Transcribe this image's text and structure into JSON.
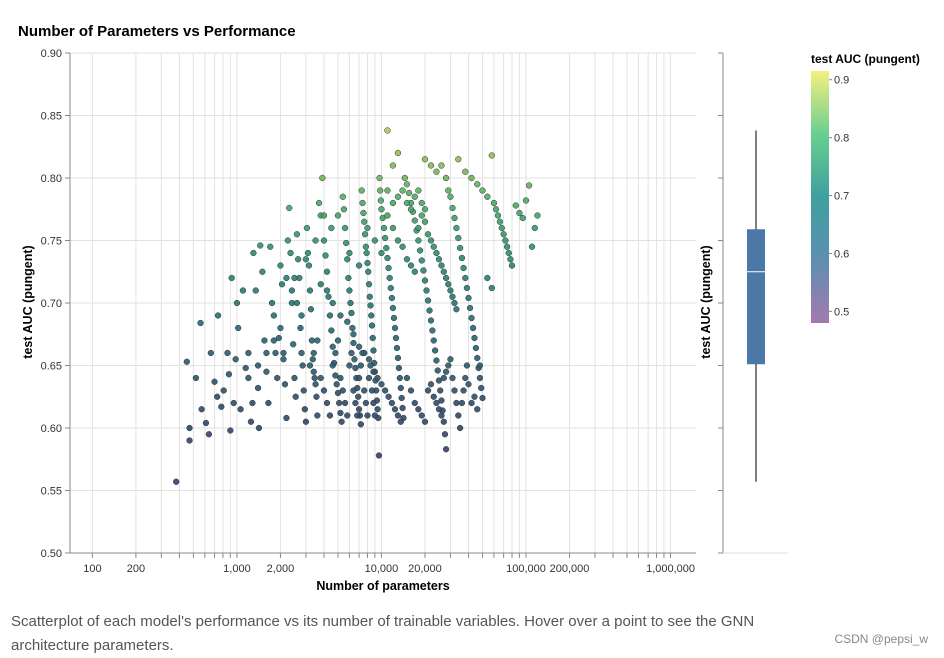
{
  "chart_data": {
    "type": "scatter",
    "title": "Number of Parameters vs Performance",
    "xlabel": "Number of parameters",
    "ylabel": "test AUC (pungent)",
    "xscale": "log",
    "xlim": [
      70,
      1500000
    ],
    "ylim": [
      0.5,
      0.9
    ],
    "x_tick_labels": [
      {
        "value": 100,
        "label": "100"
      },
      {
        "value": 200,
        "label": "200"
      },
      {
        "value": 1000,
        "label": "1,000"
      },
      {
        "value": 2000,
        "label": "2,000"
      },
      {
        "value": 10000,
        "label": "10,000"
      },
      {
        "value": 20000,
        "label": "20,000"
      },
      {
        "value": 100000,
        "label": "100,000"
      },
      {
        "value": 200000,
        "label": "200,000"
      },
      {
        "value": 1000000,
        "label": "1,000,000"
      }
    ],
    "y_tick_labels": [
      {
        "value": 0.5,
        "label": "0.50"
      },
      {
        "value": 0.55,
        "label": "0.55"
      },
      {
        "value": 0.6,
        "label": "0.60"
      },
      {
        "value": 0.65,
        "label": "0.65"
      },
      {
        "value": 0.7,
        "label": "0.70"
      },
      {
        "value": 0.75,
        "label": "0.75"
      },
      {
        "value": 0.8,
        "label": "0.80"
      },
      {
        "value": 0.85,
        "label": "0.85"
      },
      {
        "value": 0.9,
        "label": "0.90"
      }
    ],
    "color_encoding": "test AUC (pungent)",
    "grid": true,
    "points": [
      [
        380,
        0.557
      ],
      [
        470,
        0.59
      ],
      [
        470,
        0.6
      ],
      [
        450,
        0.653
      ],
      [
        520,
        0.64
      ],
      [
        570,
        0.615
      ],
      [
        560,
        0.684
      ],
      [
        610,
        0.604
      ],
      [
        640,
        0.595
      ],
      [
        660,
        0.66
      ],
      [
        700,
        0.637
      ],
      [
        730,
        0.625
      ],
      [
        740,
        0.69
      ],
      [
        780,
        0.617
      ],
      [
        810,
        0.63
      ],
      [
        860,
        0.66
      ],
      [
        880,
        0.643
      ],
      [
        900,
        0.598
      ],
      [
        920,
        0.72
      ],
      [
        950,
        0.62
      ],
      [
        980,
        0.655
      ],
      [
        1000,
        0.7
      ],
      [
        1020,
        0.68
      ],
      [
        1060,
        0.615
      ],
      [
        1100,
        0.71
      ],
      [
        1150,
        0.648
      ],
      [
        1200,
        0.66
      ],
      [
        1250,
        0.605
      ],
      [
        1280,
        0.62
      ],
      [
        1300,
        0.74
      ],
      [
        1350,
        0.71
      ],
      [
        1400,
        0.632
      ],
      [
        1420,
        0.6
      ],
      [
        1450,
        0.746
      ],
      [
        1500,
        0.725
      ],
      [
        1550,
        0.67
      ],
      [
        1600,
        0.645
      ],
      [
        1650,
        0.62
      ],
      [
        1700,
        0.745
      ],
      [
        1750,
        0.7
      ],
      [
        1800,
        0.69
      ],
      [
        1850,
        0.66
      ],
      [
        1900,
        0.64
      ],
      [
        1950,
        0.672
      ],
      [
        2000,
        0.73
      ],
      [
        2050,
        0.715
      ],
      [
        2100,
        0.655
      ],
      [
        2150,
        0.635
      ],
      [
        2200,
        0.608
      ],
      [
        2250,
        0.75
      ],
      [
        2300,
        0.776
      ],
      [
        2350,
        0.74
      ],
      [
        2400,
        0.7
      ],
      [
        2450,
        0.667
      ],
      [
        2500,
        0.64
      ],
      [
        2550,
        0.625
      ],
      [
        2600,
        0.755
      ],
      [
        2650,
        0.735
      ],
      [
        2700,
        0.72
      ],
      [
        2750,
        0.68
      ],
      [
        2800,
        0.66
      ],
      [
        2850,
        0.65
      ],
      [
        2900,
        0.63
      ],
      [
        2950,
        0.615
      ],
      [
        3000,
        0.605
      ],
      [
        3050,
        0.76
      ],
      [
        3100,
        0.74
      ],
      [
        3150,
        0.73
      ],
      [
        3200,
        0.71
      ],
      [
        3250,
        0.695
      ],
      [
        3300,
        0.67
      ],
      [
        3350,
        0.655
      ],
      [
        3400,
        0.645
      ],
      [
        3450,
        0.64
      ],
      [
        3500,
        0.635
      ],
      [
        3550,
        0.625
      ],
      [
        3600,
        0.61
      ],
      [
        3700,
        0.78
      ],
      [
        3800,
        0.77
      ],
      [
        3900,
        0.8
      ],
      [
        4000,
        0.75
      ],
      [
        4100,
        0.738
      ],
      [
        4200,
        0.725
      ],
      [
        4300,
        0.705
      ],
      [
        4400,
        0.69
      ],
      [
        4500,
        0.678
      ],
      [
        4600,
        0.665
      ],
      [
        4700,
        0.652
      ],
      [
        4800,
        0.642
      ],
      [
        4900,
        0.635
      ],
      [
        5000,
        0.628
      ],
      [
        5100,
        0.62
      ],
      [
        5200,
        0.612
      ],
      [
        5300,
        0.605
      ],
      [
        5400,
        0.785
      ],
      [
        5500,
        0.775
      ],
      [
        5600,
        0.76
      ],
      [
        5700,
        0.748
      ],
      [
        5800,
        0.735
      ],
      [
        5900,
        0.72
      ],
      [
        6000,
        0.71
      ],
      [
        6100,
        0.7
      ],
      [
        6200,
        0.692
      ],
      [
        6300,
        0.68
      ],
      [
        6400,
        0.668
      ],
      [
        6500,
        0.655
      ],
      [
        6600,
        0.648
      ],
      [
        6700,
        0.64
      ],
      [
        6800,
        0.632
      ],
      [
        6900,
        0.625
      ],
      [
        7000,
        0.615
      ],
      [
        7100,
        0.61
      ],
      [
        7200,
        0.603
      ],
      [
        7300,
        0.79
      ],
      [
        7400,
        0.78
      ],
      [
        7500,
        0.772
      ],
      [
        7600,
        0.765
      ],
      [
        7700,
        0.755
      ],
      [
        7800,
        0.745
      ],
      [
        7900,
        0.74
      ],
      [
        8000,
        0.732
      ],
      [
        8100,
        0.725
      ],
      [
        8200,
        0.715
      ],
      [
        8300,
        0.705
      ],
      [
        8400,
        0.698
      ],
      [
        8500,
        0.69
      ],
      [
        8600,
        0.682
      ],
      [
        8700,
        0.672
      ],
      [
        8800,
        0.662
      ],
      [
        8900,
        0.652
      ],
      [
        9000,
        0.645
      ],
      [
        9100,
        0.638
      ],
      [
        9200,
        0.63
      ],
      [
        9300,
        0.622
      ],
      [
        9400,
        0.615
      ],
      [
        9500,
        0.608
      ],
      [
        9600,
        0.578
      ],
      [
        9700,
        0.8
      ],
      [
        9800,
        0.79
      ],
      [
        9900,
        0.782
      ],
      [
        10000,
        0.775
      ],
      [
        10200,
        0.768
      ],
      [
        10400,
        0.76
      ],
      [
        10600,
        0.752
      ],
      [
        10800,
        0.744
      ],
      [
        11000,
        0.736
      ],
      [
        11200,
        0.728
      ],
      [
        11400,
        0.72
      ],
      [
        11600,
        0.712
      ],
      [
        11800,
        0.704
      ],
      [
        12000,
        0.696
      ],
      [
        12200,
        0.688
      ],
      [
        12400,
        0.68
      ],
      [
        12600,
        0.672
      ],
      [
        12800,
        0.664
      ],
      [
        13000,
        0.656
      ],
      [
        13200,
        0.648
      ],
      [
        13400,
        0.64
      ],
      [
        13600,
        0.632
      ],
      [
        13800,
        0.624
      ],
      [
        14000,
        0.616
      ],
      [
        14200,
        0.608
      ],
      [
        11000,
        0.838
      ],
      [
        13000,
        0.82
      ],
      [
        12000,
        0.81
      ],
      [
        14500,
        0.8
      ],
      [
        15000,
        0.795
      ],
      [
        15500,
        0.788
      ],
      [
        16000,
        0.78
      ],
      [
        16500,
        0.773
      ],
      [
        17000,
        0.766
      ],
      [
        17500,
        0.758
      ],
      [
        18000,
        0.75
      ],
      [
        18500,
        0.742
      ],
      [
        19000,
        0.734
      ],
      [
        19500,
        0.726
      ],
      [
        20000,
        0.718
      ],
      [
        20500,
        0.71
      ],
      [
        21000,
        0.702
      ],
      [
        21500,
        0.694
      ],
      [
        22000,
        0.686
      ],
      [
        22500,
        0.678
      ],
      [
        23000,
        0.67
      ],
      [
        23500,
        0.662
      ],
      [
        24000,
        0.654
      ],
      [
        24500,
        0.646
      ],
      [
        25000,
        0.638
      ],
      [
        25500,
        0.63
      ],
      [
        26000,
        0.622
      ],
      [
        26500,
        0.614
      ],
      [
        27000,
        0.605
      ],
      [
        27500,
        0.595
      ],
      [
        28000,
        0.583
      ],
      [
        20000,
        0.815
      ],
      [
        22000,
        0.81
      ],
      [
        24000,
        0.805
      ],
      [
        26000,
        0.81
      ],
      [
        28000,
        0.8
      ],
      [
        29000,
        0.79
      ],
      [
        30000,
        0.785
      ],
      [
        31000,
        0.776
      ],
      [
        32000,
        0.768
      ],
      [
        33000,
        0.76
      ],
      [
        34000,
        0.752
      ],
      [
        35000,
        0.744
      ],
      [
        36000,
        0.736
      ],
      [
        37000,
        0.728
      ],
      [
        38000,
        0.72
      ],
      [
        39000,
        0.712
      ],
      [
        40000,
        0.704
      ],
      [
        41000,
        0.696
      ],
      [
        42000,
        0.688
      ],
      [
        43000,
        0.68
      ],
      [
        44000,
        0.672
      ],
      [
        45000,
        0.664
      ],
      [
        46000,
        0.656
      ],
      [
        47000,
        0.648
      ],
      [
        48000,
        0.64
      ],
      [
        49000,
        0.632
      ],
      [
        50000,
        0.624
      ],
      [
        34000,
        0.815
      ],
      [
        38000,
        0.805
      ],
      [
        42000,
        0.8
      ],
      [
        46000,
        0.795
      ],
      [
        50000,
        0.79
      ],
      [
        54000,
        0.785
      ],
      [
        58000,
        0.818
      ],
      [
        60000,
        0.78
      ],
      [
        62000,
        0.775
      ],
      [
        64000,
        0.77
      ],
      [
        66000,
        0.765
      ],
      [
        68000,
        0.76
      ],
      [
        70000,
        0.755
      ],
      [
        72000,
        0.75
      ],
      [
        74000,
        0.745
      ],
      [
        76000,
        0.74
      ],
      [
        78000,
        0.735
      ],
      [
        80000,
        0.73
      ],
      [
        58000,
        0.712
      ],
      [
        54000,
        0.72
      ],
      [
        85000,
        0.778
      ],
      [
        90000,
        0.772
      ],
      [
        95000,
        0.768
      ],
      [
        100000,
        0.782
      ],
      [
        105000,
        0.794
      ],
      [
        110000,
        0.745
      ],
      [
        115000,
        0.76
      ],
      [
        120000,
        0.77
      ],
      [
        6000,
        0.74
      ],
      [
        7000,
        0.73
      ],
      [
        8000,
        0.76
      ],
      [
        9000,
        0.75
      ],
      [
        10000,
        0.74
      ],
      [
        11000,
        0.77
      ],
      [
        12000,
        0.76
      ],
      [
        13000,
        0.75
      ],
      [
        14000,
        0.745
      ],
      [
        15000,
        0.735
      ],
      [
        16000,
        0.73
      ],
      [
        17000,
        0.725
      ],
      [
        18000,
        0.76
      ],
      [
        19000,
        0.77
      ],
      [
        20000,
        0.765
      ],
      [
        21000,
        0.755
      ],
      [
        22000,
        0.75
      ],
      [
        23000,
        0.745
      ],
      [
        24000,
        0.74
      ],
      [
        25000,
        0.735
      ],
      [
        26000,
        0.73
      ],
      [
        27000,
        0.725
      ],
      [
        28000,
        0.72
      ],
      [
        29000,
        0.715
      ],
      [
        30000,
        0.71
      ],
      [
        31000,
        0.705
      ],
      [
        32000,
        0.7
      ],
      [
        33000,
        0.695
      ],
      [
        5000,
        0.77
      ],
      [
        4500,
        0.76
      ],
      [
        4000,
        0.77
      ],
      [
        3500,
        0.75
      ],
      [
        3000,
        0.735
      ],
      [
        2500,
        0.72
      ],
      [
        3800,
        0.715
      ],
      [
        4200,
        0.71
      ],
      [
        4600,
        0.7
      ],
      [
        5200,
        0.69
      ],
      [
        5800,
        0.685
      ],
      [
        6400,
        0.675
      ],
      [
        7000,
        0.665
      ],
      [
        7600,
        0.66
      ],
      [
        8200,
        0.655
      ],
      [
        8800,
        0.645
      ],
      [
        9400,
        0.64
      ],
      [
        10000,
        0.635
      ],
      [
        10600,
        0.63
      ],
      [
        11200,
        0.625
      ],
      [
        11800,
        0.62
      ],
      [
        12400,
        0.615
      ],
      [
        13000,
        0.61
      ],
      [
        13600,
        0.605
      ],
      [
        15000,
        0.64
      ],
      [
        16000,
        0.63
      ],
      [
        17000,
        0.62
      ],
      [
        18000,
        0.615
      ],
      [
        19000,
        0.61
      ],
      [
        20000,
        0.605
      ],
      [
        21000,
        0.63
      ],
      [
        22000,
        0.635
      ],
      [
        23000,
        0.625
      ],
      [
        24000,
        0.62
      ],
      [
        25000,
        0.615
      ],
      [
        26000,
        0.61
      ],
      [
        27000,
        0.64
      ],
      [
        28000,
        0.645
      ],
      [
        29000,
        0.65
      ],
      [
        30000,
        0.655
      ],
      [
        31000,
        0.64
      ],
      [
        32000,
        0.63
      ],
      [
        33000,
        0.62
      ],
      [
        34000,
        0.61
      ],
      [
        35000,
        0.6
      ],
      [
        36000,
        0.62
      ],
      [
        37000,
        0.63
      ],
      [
        38000,
        0.64
      ],
      [
        39000,
        0.65
      ],
      [
        40000,
        0.635
      ],
      [
        42000,
        0.62
      ],
      [
        44000,
        0.625
      ],
      [
        46000,
        0.615
      ],
      [
        48000,
        0.65
      ],
      [
        3200,
        0.65
      ],
      [
        3400,
        0.66
      ],
      [
        3600,
        0.67
      ],
      [
        3800,
        0.64
      ],
      [
        4000,
        0.63
      ],
      [
        4200,
        0.62
      ],
      [
        4400,
        0.61
      ],
      [
        4600,
        0.65
      ],
      [
        4800,
        0.66
      ],
      [
        5000,
        0.67
      ],
      [
        5200,
        0.64
      ],
      [
        5400,
        0.63
      ],
      [
        5600,
        0.62
      ],
      [
        5800,
        0.61
      ],
      [
        6000,
        0.65
      ],
      [
        6200,
        0.66
      ],
      [
        6400,
        0.63
      ],
      [
        6600,
        0.62
      ],
      [
        6800,
        0.61
      ],
      [
        7000,
        0.64
      ],
      [
        7200,
        0.65
      ],
      [
        7400,
        0.66
      ],
      [
        7600,
        0.63
      ],
      [
        7800,
        0.62
      ],
      [
        8000,
        0.61
      ],
      [
        8200,
        0.64
      ],
      [
        8400,
        0.65
      ],
      [
        8600,
        0.63
      ],
      [
        8800,
        0.62
      ],
      [
        9000,
        0.61
      ],
      [
        2200,
        0.72
      ],
      [
        2400,
        0.71
      ],
      [
        2600,
        0.7
      ],
      [
        2800,
        0.69
      ],
      [
        2000,
        0.68
      ],
      [
        1800,
        0.67
      ],
      [
        1600,
        0.66
      ],
      [
        1400,
        0.65
      ],
      [
        1200,
        0.64
      ],
      [
        2100,
        0.66
      ],
      [
        11000,
        0.79
      ],
      [
        12000,
        0.78
      ],
      [
        13000,
        0.785
      ],
      [
        14000,
        0.79
      ],
      [
        15000,
        0.78
      ],
      [
        16000,
        0.775
      ],
      [
        17000,
        0.785
      ],
      [
        18000,
        0.79
      ],
      [
        19000,
        0.78
      ],
      [
        20000,
        0.775
      ]
    ]
  },
  "legend": {
    "title": "test AUC (pungent)",
    "labels": [
      "0.9",
      "0.8",
      "0.7",
      "0.6",
      "0.5"
    ]
  },
  "boxplot": {
    "ylabel": "test AUC (pungent)",
    "min": 0.557,
    "q1": 0.651,
    "median": 0.725,
    "q3": 0.759,
    "max": 0.838
  },
  "caption": "Scatterplot of each model's performance vs its number of trainable variables. Hover over a point to see the GNN architecture parameters.",
  "watermark": "CSDN @pepsi_w"
}
